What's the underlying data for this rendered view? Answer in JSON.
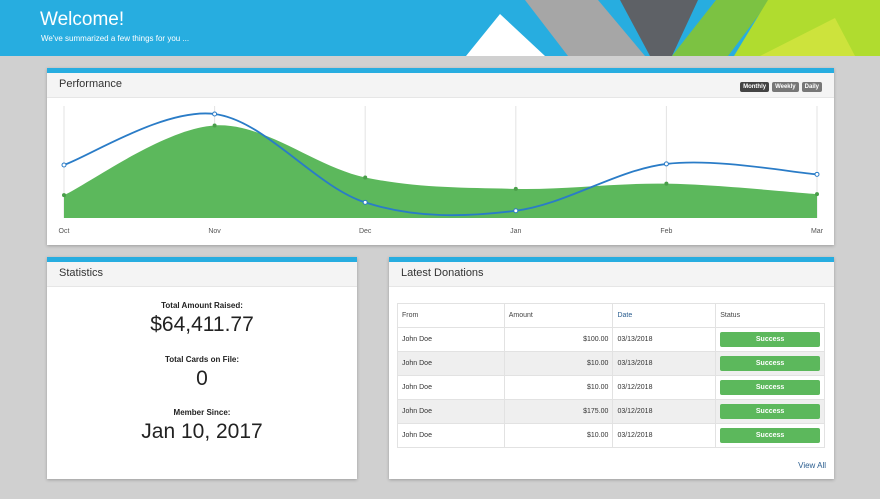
{
  "header": {
    "title": "Welcome!",
    "subtitle": "We've summarized a few things for you ..."
  },
  "performance": {
    "title": "Performance",
    "toggles": [
      "Monthly",
      "Weekly",
      "Daily"
    ],
    "active_toggle": "Monthly"
  },
  "chart_data": {
    "type": "area",
    "title": "",
    "categories": [
      "Oct",
      "Nov",
      "Dec",
      "Jan",
      "Feb",
      "Mar"
    ],
    "series": [
      {
        "type": "area",
        "color": "#5cb85c",
        "values": [
          0.22,
          0.89,
          0.39,
          0.28,
          0.33,
          0.23
        ]
      },
      {
        "type": "line",
        "color": "#2a7cc7",
        "values": [
          0.51,
          1.0,
          0.15,
          0.07,
          0.52,
          0.42
        ]
      }
    ],
    "ylim": [
      0,
      1
    ],
    "grid": "vertical"
  },
  "statistics": {
    "title": "Statistics",
    "items": [
      {
        "label": "Total Amount Raised:",
        "value": "$64,411.77"
      },
      {
        "label": "Total Cards on File:",
        "value": "0"
      },
      {
        "label": "Member Since:",
        "value": "Jan 10, 2017"
      }
    ]
  },
  "donations": {
    "title": "Latest Donations",
    "columns": [
      "From",
      "Amount",
      "Date",
      "Status"
    ],
    "rows": [
      {
        "from": "John Doe",
        "amount": "$100.00",
        "date": "03/13/2018",
        "status": "Success"
      },
      {
        "from": "John Doe",
        "amount": "$10.00",
        "date": "03/13/2018",
        "status": "Success"
      },
      {
        "from": "John Doe",
        "amount": "$10.00",
        "date": "03/12/2018",
        "status": "Success"
      },
      {
        "from": "John Doe",
        "amount": "$175.00",
        "date": "03/12/2018",
        "status": "Success"
      },
      {
        "from": "John Doe",
        "amount": "$10.00",
        "date": "03/12/2018",
        "status": "Success"
      }
    ],
    "view_all": "View All"
  }
}
